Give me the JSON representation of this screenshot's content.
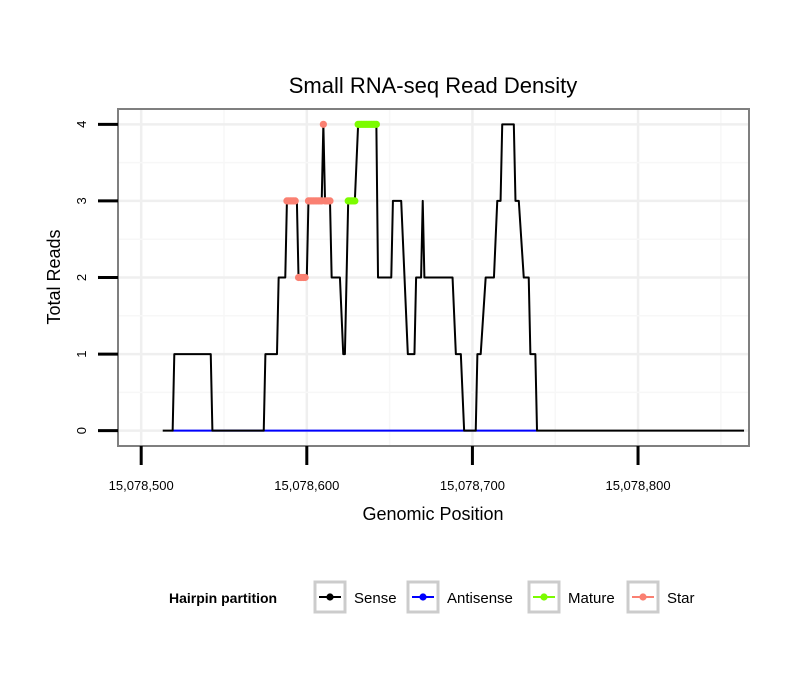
{
  "chart_data": {
    "type": "line",
    "title": "Small RNA-seq Read Density",
    "xlabel": "Genomic Position",
    "ylabel": "Total Reads",
    "xlim": [
      15078486,
      15078867
    ],
    "ylim": [
      -0.2,
      4.2
    ],
    "x_ticks": [
      15078500,
      15078600,
      15078700,
      15078800
    ],
    "x_tick_labels": [
      "15,078,500",
      "15,078,600",
      "15,078,700",
      "15,078,800"
    ],
    "y_ticks": [
      0,
      1,
      2,
      3,
      4
    ],
    "y_tick_labels": [
      "0",
      "1",
      "2",
      "3",
      "4"
    ],
    "grid": true,
    "legend": {
      "title": "Hairpin partition",
      "placement": "bottom",
      "entries": [
        {
          "name": "Sense",
          "color": "#000000"
        },
        {
          "name": "Antisense",
          "color": "#0000ff"
        },
        {
          "name": "Mature",
          "color": "#7cfc00"
        },
        {
          "name": "Star",
          "color": "#fa8072"
        }
      ]
    },
    "series": [
      {
        "name": "Sense",
        "color": "#000000",
        "kind": "line",
        "points": [
          [
            15078513,
            0
          ],
          [
            15078519,
            0
          ],
          [
            15078520,
            1
          ],
          [
            15078542,
            1
          ],
          [
            15078543,
            0
          ],
          [
            15078574,
            0
          ],
          [
            15078575,
            1
          ],
          [
            15078582,
            1
          ],
          [
            15078583,
            2
          ],
          [
            15078587,
            2
          ],
          [
            15078588,
            3
          ],
          [
            15078594,
            3
          ],
          [
            15078595,
            2
          ],
          [
            15078600,
            2
          ],
          [
            15078601,
            3
          ],
          [
            15078609,
            3
          ],
          [
            15078610,
            4
          ],
          [
            15078611,
            3
          ],
          [
            15078614,
            3
          ],
          [
            15078615,
            2
          ],
          [
            15078620,
            2
          ],
          [
            15078622,
            1
          ],
          [
            15078623,
            1
          ],
          [
            15078625,
            3
          ],
          [
            15078629,
            3
          ],
          [
            15078631,
            4
          ],
          [
            15078642,
            4
          ],
          [
            15078643,
            2
          ],
          [
            15078651,
            2
          ],
          [
            15078652,
            3
          ],
          [
            15078657,
            3
          ],
          [
            15078659,
            2
          ],
          [
            15078661,
            1
          ],
          [
            15078665,
            1
          ],
          [
            15078666,
            2
          ],
          [
            15078669,
            2
          ],
          [
            15078670,
            3
          ],
          [
            15078671,
            2
          ],
          [
            15078688,
            2
          ],
          [
            15078690,
            1
          ],
          [
            15078693,
            1
          ],
          [
            15078695,
            0
          ],
          [
            15078702,
            0
          ],
          [
            15078703,
            1
          ],
          [
            15078705,
            1
          ],
          [
            15078708,
            2
          ],
          [
            15078713,
            2
          ],
          [
            15078715,
            3
          ],
          [
            15078717,
            3
          ],
          [
            15078718,
            4
          ],
          [
            15078725,
            4
          ],
          [
            15078726,
            3
          ],
          [
            15078728,
            3
          ],
          [
            15078731,
            2
          ],
          [
            15078734,
            2
          ],
          [
            15078735,
            1
          ],
          [
            15078738,
            1
          ],
          [
            15078739,
            0
          ],
          [
            15078864,
            0
          ]
        ]
      },
      {
        "name": "Antisense",
        "color": "#0000ff",
        "kind": "line",
        "points": [
          [
            15078519,
            0
          ],
          [
            15078739,
            0
          ]
        ]
      },
      {
        "name": "Mature",
        "color": "#7cfc00",
        "kind": "points",
        "points": [
          [
            15078625,
            3
          ],
          [
            15078626,
            3
          ],
          [
            15078627,
            3
          ],
          [
            15078628,
            3
          ],
          [
            15078629,
            3
          ],
          [
            15078631,
            4
          ],
          [
            15078632,
            4
          ],
          [
            15078633,
            4
          ],
          [
            15078634,
            4
          ],
          [
            15078635,
            4
          ],
          [
            15078636,
            4
          ],
          [
            15078637,
            4
          ],
          [
            15078638,
            4
          ],
          [
            15078639,
            4
          ],
          [
            15078640,
            4
          ],
          [
            15078641,
            4
          ],
          [
            15078642,
            4
          ]
        ]
      },
      {
        "name": "Star",
        "color": "#fa8072",
        "kind": "points",
        "points": [
          [
            15078588,
            3
          ],
          [
            15078589,
            3
          ],
          [
            15078590,
            3
          ],
          [
            15078591,
            3
          ],
          [
            15078592,
            3
          ],
          [
            15078593,
            3
          ],
          [
            15078595,
            2
          ],
          [
            15078596,
            2
          ],
          [
            15078597,
            2
          ],
          [
            15078598,
            2
          ],
          [
            15078599,
            2
          ],
          [
            15078601,
            3
          ],
          [
            15078602,
            3
          ],
          [
            15078603,
            3
          ],
          [
            15078604,
            3
          ],
          [
            15078605,
            3
          ],
          [
            15078606,
            3
          ],
          [
            15078607,
            3
          ],
          [
            15078608,
            3
          ],
          [
            15078609,
            3
          ],
          [
            15078610,
            4
          ],
          [
            15078611,
            3
          ],
          [
            15078612,
            3
          ],
          [
            15078613,
            3
          ],
          [
            15078614,
            3
          ]
        ]
      }
    ]
  }
}
